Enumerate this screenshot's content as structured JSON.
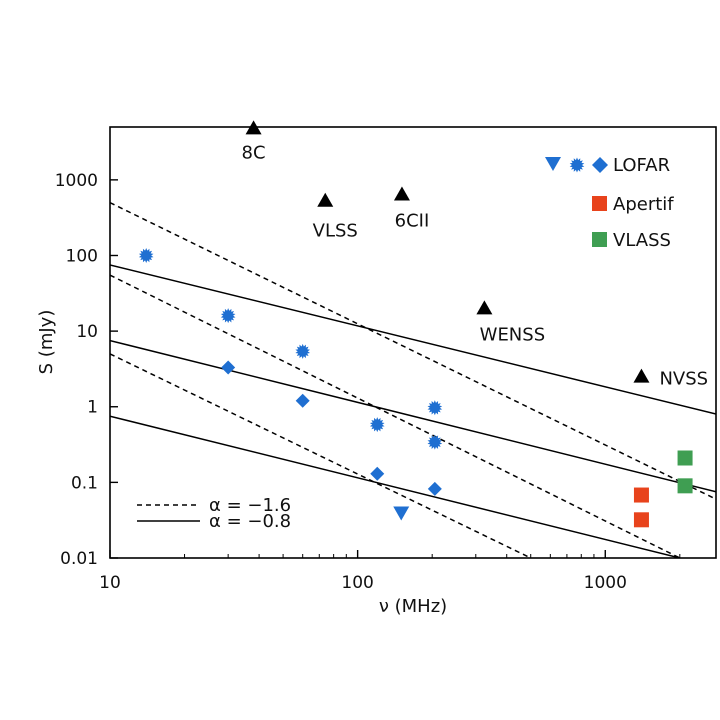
{
  "colors": {
    "lofar": "#1f6fd1",
    "apertif": "#e8431c",
    "vlass": "#3f9e52",
    "surveys": "#000000"
  },
  "chart_data": {
    "type": "scatter",
    "title": "",
    "xlabel": "ν (MHz)",
    "ylabel": "S (mJy)",
    "x_scale": "log",
    "y_scale": "log",
    "xlim": [
      10,
      2800
    ],
    "ylim": [
      0.01,
      5000
    ],
    "x_ticks": [
      {
        "value": 10,
        "label": "10"
      },
      {
        "value": 100,
        "label": "100"
      },
      {
        "value": 1000,
        "label": "1000"
      }
    ],
    "y_ticks": [
      {
        "value": 0.01,
        "label": "0.01"
      },
      {
        "value": 0.1,
        "label": "0.1"
      },
      {
        "value": 1,
        "label": "1"
      },
      {
        "value": 10,
        "label": "10"
      },
      {
        "value": 100,
        "label": "100"
      },
      {
        "value": 1000,
        "label": "1000"
      }
    ],
    "surveys": [
      {
        "label": "8C",
        "x": 38,
        "y": 4800
      },
      {
        "label": "VLSS",
        "x": 74,
        "y": 530
      },
      {
        "label": "6CII",
        "x": 151,
        "y": 640
      },
      {
        "label": "WENSS",
        "x": 325,
        "y": 20
      },
      {
        "label": "NVSS",
        "x": 1400,
        "y": 2.5
      }
    ],
    "lofar_stars": [
      {
        "x": 14,
        "y": 100
      },
      {
        "x": 30,
        "y": 16
      },
      {
        "x": 60,
        "y": 5.4
      },
      {
        "x": 120,
        "y": 0.58
      },
      {
        "x": 205,
        "y": 0.97
      },
      {
        "x": 205,
        "y": 0.34
      }
    ],
    "lofar_diamonds": [
      {
        "x": 30,
        "y": 3.3
      },
      {
        "x": 60,
        "y": 1.2
      },
      {
        "x": 120,
        "y": 0.13
      },
      {
        "x": 205,
        "y": 0.082
      }
    ],
    "lofar_triangles": [
      {
        "x": 150,
        "y": 0.04
      }
    ],
    "apertif": [
      {
        "x": 1400,
        "y": 0.068
      },
      {
        "x": 1400,
        "y": 0.032
      }
    ],
    "vlass": [
      {
        "x": 2100,
        "y": 0.21
      },
      {
        "x": 2100,
        "y": 0.09
      }
    ],
    "lines": [
      {
        "style": "dashed",
        "x0": 10,
        "y0": 500,
        "x1": 2800,
        "y1": 0.06
      },
      {
        "style": "dashed",
        "x0": 10,
        "y0": 55,
        "x1": 2000,
        "y1": 0.01
      },
      {
        "style": "dashed",
        "x0": 10,
        "y0": 5,
        "x1": 500,
        "y1": 0.01
      },
      {
        "style": "solid",
        "x0": 10,
        "y0": 75,
        "x1": 2800,
        "y1": 0.8
      },
      {
        "style": "solid",
        "x0": 10,
        "y0": 7.5,
        "x1": 2800,
        "y1": 0.075
      },
      {
        "style": "solid",
        "x0": 10,
        "y0": 0.75,
        "x1": 2000,
        "y1": 0.01
      }
    ],
    "legend": {
      "placement": "top-right",
      "entries": [
        {
          "key": "lofar",
          "label": "LOFAR"
        },
        {
          "key": "apertif",
          "label": "Apertif"
        },
        {
          "key": "vlass",
          "label": "VLASS"
        }
      ]
    },
    "line_legend": {
      "placement": "bottom-left",
      "entries": [
        {
          "style": "dashed",
          "label": "α = −1.6"
        },
        {
          "style": "solid",
          "label": "α = −0.8"
        }
      ]
    }
  }
}
